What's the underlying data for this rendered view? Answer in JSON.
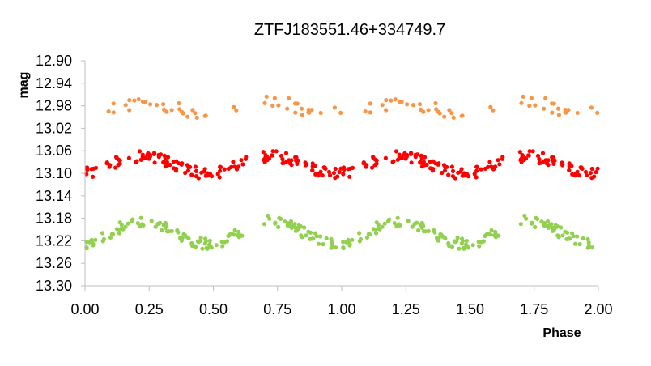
{
  "chart_data": {
    "type": "scatter",
    "title": "ZTFJ183551.46+334749.7",
    "xlabel": "Phase",
    "ylabel": "mag",
    "xlim": [
      0,
      2
    ],
    "ylim": [
      12.9,
      13.3
    ],
    "y_inverted": true,
    "x_ticks": [
      "0.00",
      "0.25",
      "0.50",
      "0.75",
      "1.00",
      "1.25",
      "1.50",
      "1.75",
      "2.00"
    ],
    "y_ticks": [
      "12.90",
      "12.94",
      "12.98",
      "13.02",
      "13.06",
      "13.10",
      "13.14",
      "13.18",
      "13.22",
      "13.26",
      "13.30"
    ],
    "grid": false,
    "legend": "none",
    "colors": {
      "orange": "#f79646",
      "red": "#ff0000",
      "green": "#92d050"
    },
    "series": [
      {
        "color_key": "orange",
        "center": 12.985,
        "amplitude": 0.01,
        "scatter": 0.012,
        "points_per_cycle": 55,
        "gaps": [
          [
            0.48,
            0.56
          ],
          [
            0.62,
            0.7
          ]
        ]
      },
      {
        "color_key": "red",
        "center": 13.085,
        "amplitude": 0.015,
        "scatter": 0.01,
        "points_per_cycle": 160,
        "gaps": [
          [
            0.63,
            0.69
          ]
        ]
      },
      {
        "color_key": "green",
        "center": 13.205,
        "amplitude": 0.02,
        "scatter": 0.01,
        "points_per_cycle": 140,
        "gaps": [
          [
            0.63,
            0.69
          ]
        ]
      }
    ]
  }
}
